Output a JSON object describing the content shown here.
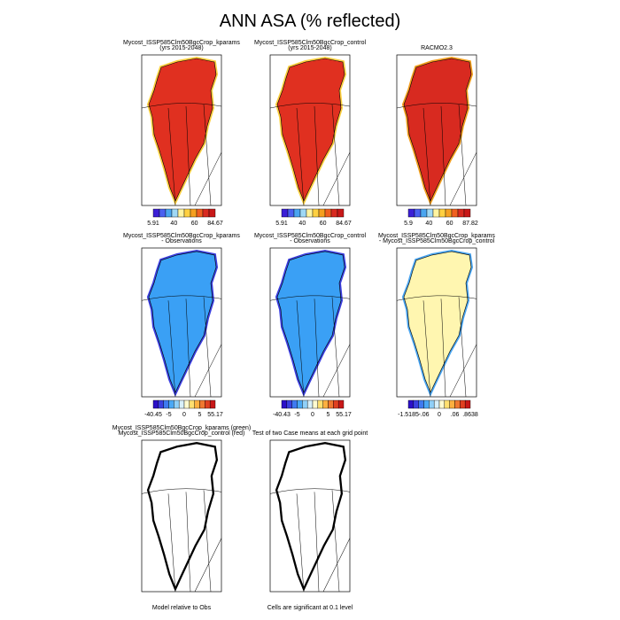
{
  "title": "ANN ASA (% reflected)",
  "panels": [
    {
      "title": [
        "Mycost_ISSP585Clm50BgcCrop_kparams",
        "(yrs 2015-2048)"
      ],
      "colorbar": [
        "5.91",
        "40",
        "60",
        "84.67"
      ]
    },
    {
      "title": [
        "Mycost_ISSP585Clm50BgcCrop_control",
        "(yrs 2015-2048)"
      ],
      "colorbar": [
        "5.91",
        "40",
        "60",
        "84.67"
      ]
    },
    {
      "title": [
        "RACMO2.3"
      ],
      "colorbar": [
        "5.9",
        "40",
        "60",
        "87.82"
      ]
    },
    {
      "title": [
        "Mycost_ISSP585Clm50BgcCrop_kparams",
        "- Observations"
      ],
      "colorbar": [
        "-40.45",
        "-5",
        "0",
        "5",
        "55.17"
      ]
    },
    {
      "title": [
        "Mycost_ISSP585Clm50BgcCrop_control",
        "- Observations"
      ],
      "colorbar": [
        "-40.43",
        "-5",
        "0",
        "5",
        "55.17"
      ]
    },
    {
      "title": [
        "Mycost_ISSP585Clm50BgcCrop_kparams",
        "- Mycost_ISSP585Clm50BgcCrop_control"
      ],
      "colorbar": [
        "-1.5185",
        "-.06",
        "0",
        ".06",
        ".8638"
      ]
    },
    {
      "title": [
        "Mycost_ISSP585Clm50BgcCrop_kparams (green)",
        "Mycost_ISSP585Clm50BgcCrop_control (red)"
      ],
      "note": "Model relative to Obs"
    },
    {
      "title": [
        "Test of two Case means at each grid point"
      ],
      "note": "Cells are significant at 0.1 level"
    }
  ]
}
